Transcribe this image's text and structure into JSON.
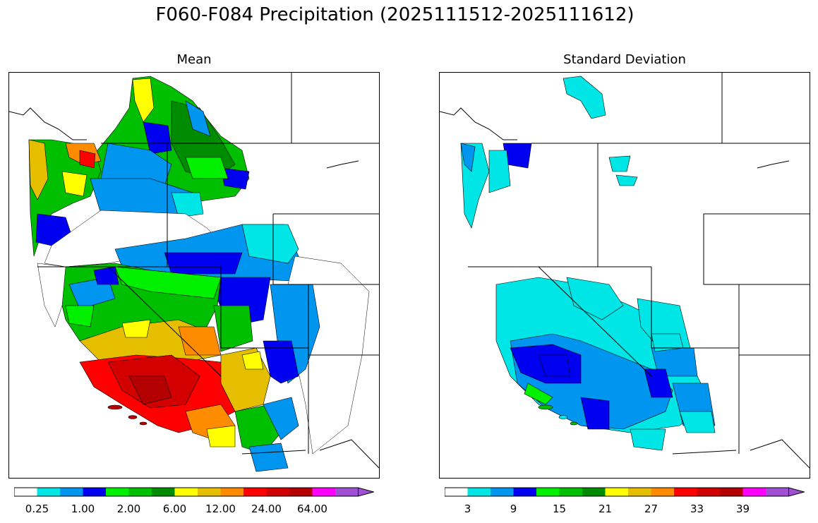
{
  "title": "F060-F084 Precipitation (2025111512-2025111612)",
  "panels": [
    {
      "id": "mean",
      "title": "Mean",
      "colorbar": {
        "colors": [
          "#ffffff",
          "#00e5e5",
          "#0096f0",
          "#0000f0",
          "#00f000",
          "#00be00",
          "#008c00",
          "#ffff00",
          "#e6be00",
          "#ff8c00",
          "#ff0000",
          "#d20000",
          "#b40000",
          "#ff00ff",
          "#a050d2"
        ],
        "tick_labels": [
          "0.25",
          "1.00",
          "2.00",
          "6.00",
          "12.00",
          "24.00",
          "64.00"
        ]
      }
    },
    {
      "id": "stddev",
      "title": "Standard Deviation",
      "colorbar": {
        "colors": [
          "#ffffff",
          "#00e5e5",
          "#0096f0",
          "#0000f0",
          "#00f000",
          "#00be00",
          "#008c00",
          "#ffff00",
          "#e6be00",
          "#ff8c00",
          "#ff0000",
          "#d20000",
          "#b40000",
          "#ff00ff",
          "#a050d2"
        ],
        "tick_labels": [
          "3",
          "9",
          "15",
          "21",
          "27",
          "33",
          "39"
        ]
      }
    }
  ]
}
